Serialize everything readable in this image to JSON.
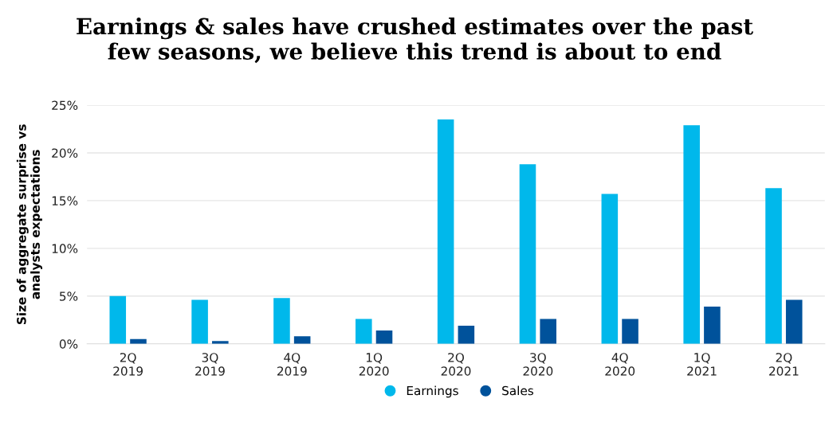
{
  "chart_data": {
    "type": "bar",
    "title": "Earnings & sales have crushed estimates over the past\nfew seasons, we believe this trend is about to end",
    "ylabel": "Size of aggregate surprise vs\nanalysts expectations",
    "categories": [
      "2Q\n2019",
      "3Q\n2019",
      "4Q\n2019",
      "1Q\n2020",
      "2Q\n2020",
      "3Q\n2020",
      "4Q\n2020",
      "1Q\n2021",
      "2Q\n2021"
    ],
    "series": [
      {
        "name": "Earnings",
        "color": "#00b8eb",
        "values": [
          5.0,
          4.6,
          4.8,
          2.6,
          23.5,
          18.8,
          15.7,
          22.9,
          16.3
        ]
      },
      {
        "name": "Sales",
        "color": "#00529b",
        "values": [
          0.5,
          0.3,
          0.8,
          1.4,
          1.9,
          2.6,
          2.6,
          3.9,
          4.6
        ]
      }
    ],
    "ylim": [
      0,
      25
    ],
    "yticks": [
      {
        "value": 0,
        "label": "0%"
      },
      {
        "value": 5,
        "label": "5%"
      },
      {
        "value": 10,
        "label": "10%"
      },
      {
        "value": 15,
        "label": "15%"
      },
      {
        "value": 20,
        "label": "20%"
      },
      {
        "value": 25,
        "label": "25%"
      }
    ],
    "grid": "y",
    "legend": "bottom"
  }
}
